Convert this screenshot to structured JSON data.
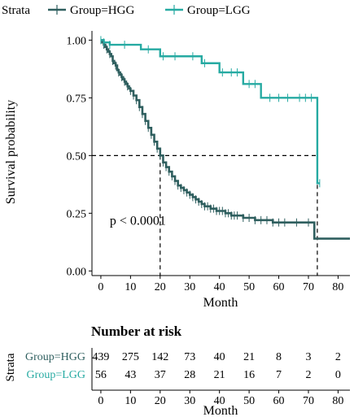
{
  "legend": {
    "title": "Strata",
    "items": [
      {
        "label": "Group=HGG",
        "color": "#2f5f5f"
      },
      {
        "label": "Group=LGG",
        "color": "#26aaa2"
      }
    ]
  },
  "chart_data": {
    "type": "line",
    "subtype": "kaplan-meier-survival",
    "title": "",
    "xlabel": "Month",
    "ylabel": "Survival probability",
    "xlim": [
      -3,
      84
    ],
    "ylim": [
      -0.02,
      1.04
    ],
    "x_ticks": [
      0,
      10,
      20,
      30,
      40,
      50,
      60,
      70,
      80
    ],
    "y_ticks": [
      0.0,
      0.25,
      0.5,
      0.75,
      1.0
    ],
    "y_tick_labels": [
      "0.00",
      "0.25",
      "0.50",
      "0.75",
      "1.00"
    ],
    "grid": false,
    "legend_position": "top",
    "annotation": "p < 0.0001",
    "annotation_at": {
      "x": 3,
      "y": 0.2
    },
    "median_survival": {
      "y": 0.5,
      "x": [
        20,
        73
      ]
    },
    "series": [
      {
        "name": "Group=HGG",
        "color": "#2f5f5f",
        "x": [
          0,
          0.5,
          1,
          1.5,
          2,
          2.5,
          3,
          3.5,
          4,
          4.5,
          5,
          5.5,
          6,
          6.5,
          7,
          7.5,
          8,
          8.5,
          9,
          9.5,
          10,
          11,
          12,
          13,
          14,
          15,
          16,
          17,
          18,
          19,
          20,
          21,
          22,
          23,
          24,
          25,
          26,
          27,
          28,
          29,
          30,
          31,
          32,
          33,
          34,
          35,
          36,
          37,
          38,
          39,
          40,
          42,
          44,
          46,
          48,
          50,
          52,
          54,
          56,
          58,
          60,
          62,
          64,
          66,
          68,
          70,
          71.9,
          72,
          76,
          84
        ],
        "y": [
          1.0,
          0.99,
          0.98,
          0.97,
          0.96,
          0.95,
          0.94,
          0.93,
          0.91,
          0.9,
          0.89,
          0.87,
          0.86,
          0.85,
          0.84,
          0.83,
          0.82,
          0.81,
          0.8,
          0.79,
          0.78,
          0.76,
          0.74,
          0.71,
          0.68,
          0.65,
          0.62,
          0.59,
          0.56,
          0.53,
          0.5,
          0.47,
          0.45,
          0.43,
          0.41,
          0.39,
          0.37,
          0.36,
          0.35,
          0.34,
          0.33,
          0.32,
          0.31,
          0.3,
          0.29,
          0.28,
          0.28,
          0.27,
          0.27,
          0.26,
          0.26,
          0.25,
          0.24,
          0.24,
          0.23,
          0.23,
          0.22,
          0.22,
          0.22,
          0.21,
          0.21,
          0.21,
          0.21,
          0.21,
          0.21,
          0.21,
          0.21,
          0.14,
          0.14,
          0.14
        ],
        "censor_x": [
          1,
          2,
          3,
          4,
          5,
          6,
          7,
          8,
          9,
          10,
          11,
          12,
          13,
          14,
          15,
          16,
          17,
          18,
          19,
          20,
          21,
          22,
          23,
          24,
          25,
          26,
          27,
          28,
          29,
          30,
          31,
          32,
          33,
          34,
          35,
          36,
          37,
          38,
          39,
          40,
          41,
          42,
          43,
          44,
          45,
          46,
          48,
          50,
          52,
          54,
          56,
          58,
          60,
          62,
          66,
          70
        ]
      },
      {
        "name": "Group=LGG",
        "color": "#26aaa2",
        "x": [
          0,
          0.5,
          1,
          2,
          3,
          13,
          13.5,
          19,
          20,
          33,
          34,
          38,
          40,
          47,
          48,
          53,
          54,
          60,
          72.9,
          73,
          73.8
        ],
        "y": [
          1.0,
          1.0,
          0.99,
          0.99,
          0.98,
          0.98,
          0.96,
          0.96,
          0.93,
          0.93,
          0.9,
          0.9,
          0.86,
          0.86,
          0.81,
          0.81,
          0.75,
          0.75,
          0.75,
          0.38,
          0.38
        ],
        "censor_x": [
          0,
          1,
          3,
          8,
          16,
          21,
          25,
          31,
          35,
          41,
          44,
          46,
          50,
          52,
          57,
          60,
          63,
          67,
          69,
          71,
          73.8
        ]
      }
    ]
  },
  "risk_table": {
    "title": "Number at risk",
    "ylabel": "Strata",
    "xlabel": "Month",
    "times": [
      0,
      10,
      20,
      30,
      40,
      50,
      60,
      70,
      80
    ],
    "rows": [
      {
        "label": "Group=HGG",
        "color": "#2f5f5f",
        "counts": [
          "439",
          "275",
          "142",
          "73",
          "40",
          "21",
          "8",
          "3",
          "2"
        ]
      },
      {
        "label": "Group=LGG",
        "color": "#26aaa2",
        "counts": [
          "56",
          "43",
          "37",
          "28",
          "21",
          "16",
          "7",
          "2",
          "0"
        ]
      }
    ]
  }
}
